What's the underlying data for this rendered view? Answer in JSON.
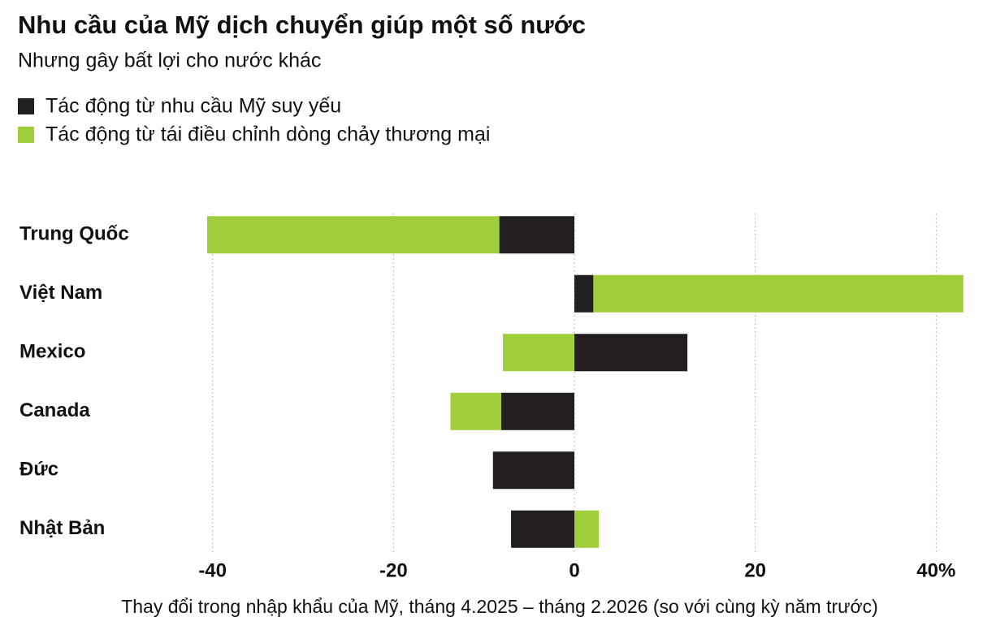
{
  "chart_data": {
    "type": "bar",
    "orientation": "horizontal",
    "stacked": true,
    "title": "Nhu cầu của Mỹ dịch chuyển giúp một số nước",
    "subtitle": "Nhưng gây bất lợi cho nước khác",
    "x_label": "Thay đổi trong nhập khẩu của Mỹ, tháng 4.2025 – tháng 2.2026 (so với cùng kỳ năm trước)",
    "categories": [
      "Trung Quốc",
      "Việt Nam",
      "Mexico",
      "Canada",
      "Đức",
      "Nhật Bản"
    ],
    "series": [
      {
        "name": "Tác động từ nhu cầu Mỹ suy yếu",
        "color": "#231f20",
        "values": [
          -8.3,
          2.1,
          12.5,
          -8.1,
          -9.0,
          -7.0
        ]
      },
      {
        "name": "Tác động từ tái điều chỉnh dòng chảy thương mại",
        "color": "#9fcd3c",
        "values": [
          -32.3,
          40.9,
          -7.9,
          -5.6,
          0,
          2.7
        ]
      }
    ],
    "xlim": [
      -45,
      45
    ],
    "xticks": [
      -40,
      -20,
      0,
      20,
      {
        "value": 40,
        "label": "40%"
      }
    ],
    "grid": true,
    "legend_position": "top-left"
  }
}
